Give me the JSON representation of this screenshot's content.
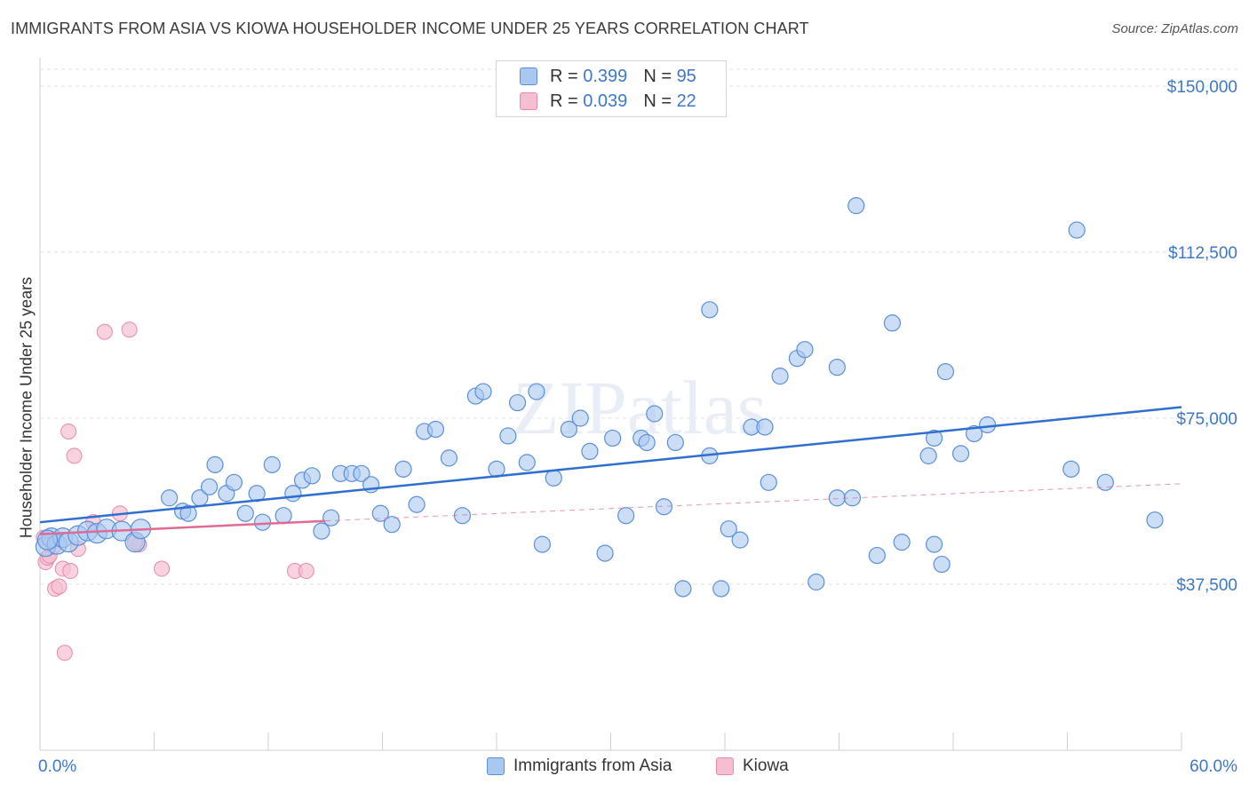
{
  "title": "IMMIGRANTS FROM ASIA VS KIOWA HOUSEHOLDER INCOME UNDER 25 YEARS CORRELATION CHART",
  "source": "Source: ZipAtlas.com",
  "watermark": "ZIPatlas",
  "legend": {
    "rows": [
      {
        "r_label": "R =",
        "r_value": "0.399",
        "n_label": "N =",
        "n_value": "95"
      },
      {
        "r_label": "R =",
        "r_value": "0.039",
        "n_label": "N =",
        "n_value": "22"
      }
    ]
  },
  "bottom_legend": {
    "series1": "Immigrants from Asia",
    "series2": "Kiowa"
  },
  "colors": {
    "blue_fill": "#a9c8f0",
    "blue_stroke": "#5b8fd8",
    "blue_line": "#2f6fd0",
    "pink_fill": "#f6bfd1",
    "pink_stroke": "#e58aaa",
    "pink_line": "#e06a94",
    "tick_text": "#3d78c8",
    "grid": "#e2e2e2"
  },
  "chart_data": {
    "type": "scatter",
    "title": "IMMIGRANTS FROM ASIA VS KIOWA HOUSEHOLDER INCOME UNDER 25 YEARS CORRELATION CHART",
    "xlabel": "",
    "ylabel": "Householder Income Under 25 years",
    "xlim": [
      0,
      60
    ],
    "ylim": [
      0,
      155000
    ],
    "x_tick_labels": [
      "0.0%",
      "60.0%"
    ],
    "y_ticks": [
      37500,
      75000,
      112500,
      150000
    ],
    "y_tick_labels": [
      "$37,500",
      "$75,000",
      "$112,500",
      "$150,000"
    ],
    "grid": true,
    "series": [
      {
        "name": "Immigrants from Asia",
        "color": "#a9c8f0",
        "trend": {
          "x": [
            0,
            60
          ],
          "y": [
            51500,
            77500
          ]
        },
        "points": [
          {
            "x": 0.3,
            "y": 46000
          },
          {
            "x": 0.6,
            "y": 48000
          },
          {
            "x": 0.9,
            "y": 46500
          },
          {
            "x": 1.2,
            "y": 48000
          },
          {
            "x": 1.5,
            "y": 47000
          },
          {
            "x": 2.0,
            "y": 48500
          },
          {
            "x": 2.5,
            "y": 49500
          },
          {
            "x": 3.0,
            "y": 49000
          },
          {
            "x": 3.5,
            "y": 50000
          },
          {
            "x": 4.3,
            "y": 49500
          },
          {
            "x": 5.0,
            "y": 47000
          },
          {
            "x": 5.3,
            "y": 50000
          },
          {
            "x": 6.8,
            "y": 57000
          },
          {
            "x": 7.5,
            "y": 54000
          },
          {
            "x": 7.8,
            "y": 53500
          },
          {
            "x": 8.4,
            "y": 57000
          },
          {
            "x": 8.9,
            "y": 59500
          },
          {
            "x": 9.2,
            "y": 64500
          },
          {
            "x": 9.8,
            "y": 58000
          },
          {
            "x": 10.2,
            "y": 60500
          },
          {
            "x": 10.8,
            "y": 53500
          },
          {
            "x": 11.4,
            "y": 58000
          },
          {
            "x": 11.7,
            "y": 51500
          },
          {
            "x": 12.2,
            "y": 64500
          },
          {
            "x": 12.8,
            "y": 53000
          },
          {
            "x": 13.3,
            "y": 58000
          },
          {
            "x": 13.8,
            "y": 61000
          },
          {
            "x": 14.3,
            "y": 62000
          },
          {
            "x": 14.8,
            "y": 49500
          },
          {
            "x": 15.3,
            "y": 52500
          },
          {
            "x": 15.8,
            "y": 62500
          },
          {
            "x": 16.4,
            "y": 62500
          },
          {
            "x": 16.9,
            "y": 62500
          },
          {
            "x": 17.4,
            "y": 60000
          },
          {
            "x": 17.9,
            "y": 53500
          },
          {
            "x": 18.5,
            "y": 51000
          },
          {
            "x": 19.1,
            "y": 63500
          },
          {
            "x": 19.8,
            "y": 55500
          },
          {
            "x": 20.2,
            "y": 72000
          },
          {
            "x": 20.8,
            "y": 72500
          },
          {
            "x": 21.5,
            "y": 66000
          },
          {
            "x": 22.2,
            "y": 53000
          },
          {
            "x": 22.9,
            "y": 80000
          },
          {
            "x": 23.3,
            "y": 81000
          },
          {
            "x": 24.0,
            "y": 63500
          },
          {
            "x": 24.6,
            "y": 71000
          },
          {
            "x": 25.1,
            "y": 78500
          },
          {
            "x": 25.6,
            "y": 65000
          },
          {
            "x": 26.1,
            "y": 81000
          },
          {
            "x": 26.4,
            "y": 46500
          },
          {
            "x": 27.0,
            "y": 61500
          },
          {
            "x": 27.8,
            "y": 72500
          },
          {
            "x": 28.4,
            "y": 75000
          },
          {
            "x": 28.9,
            "y": 67500
          },
          {
            "x": 29.7,
            "y": 44500
          },
          {
            "x": 30.1,
            "y": 70500
          },
          {
            "x": 30.8,
            "y": 53000
          },
          {
            "x": 31.6,
            "y": 70500
          },
          {
            "x": 31.9,
            "y": 69500
          },
          {
            "x": 32.3,
            "y": 76000
          },
          {
            "x": 32.8,
            "y": 55000
          },
          {
            "x": 33.4,
            "y": 69500
          },
          {
            "x": 33.8,
            "y": 36500
          },
          {
            "x": 35.2,
            "y": 66500
          },
          {
            "x": 35.2,
            "y": 99500
          },
          {
            "x": 35.8,
            "y": 36500
          },
          {
            "x": 36.2,
            "y": 50000
          },
          {
            "x": 36.8,
            "y": 47500
          },
          {
            "x": 37.4,
            "y": 73000
          },
          {
            "x": 38.1,
            "y": 73000
          },
          {
            "x": 38.3,
            "y": 60500
          },
          {
            "x": 38.9,
            "y": 84500
          },
          {
            "x": 39.8,
            "y": 88500
          },
          {
            "x": 40.2,
            "y": 90500
          },
          {
            "x": 40.8,
            "y": 38000
          },
          {
            "x": 41.9,
            "y": 86500
          },
          {
            "x": 41.9,
            "y": 57000
          },
          {
            "x": 42.7,
            "y": 57000
          },
          {
            "x": 42.9,
            "y": 123000
          },
          {
            "x": 44.0,
            "y": 44000
          },
          {
            "x": 44.8,
            "y": 96500
          },
          {
            "x": 45.3,
            "y": 47000
          },
          {
            "x": 46.7,
            "y": 66500
          },
          {
            "x": 47.0,
            "y": 70500
          },
          {
            "x": 47.0,
            "y": 46500
          },
          {
            "x": 47.4,
            "y": 42000
          },
          {
            "x": 47.6,
            "y": 85500
          },
          {
            "x": 48.4,
            "y": 67000
          },
          {
            "x": 49.1,
            "y": 71500
          },
          {
            "x": 49.8,
            "y": 73500
          },
          {
            "x": 54.2,
            "y": 63500
          },
          {
            "x": 54.5,
            "y": 117500
          },
          {
            "x": 56.0,
            "y": 60500
          },
          {
            "x": 58.6,
            "y": 52000
          },
          {
            "x": 0.4,
            "y": 47500
          }
        ]
      },
      {
        "name": "Kiowa",
        "color": "#f6bfd1",
        "trend": {
          "x": [
            0,
            15
          ],
          "y": [
            48800,
            51800
          ]
        },
        "trend_dashed": {
          "x": [
            15,
            60
          ],
          "y": [
            51800,
            60200
          ]
        },
        "points": [
          {
            "x": 0.2,
            "y": 48000
          },
          {
            "x": 0.3,
            "y": 42500
          },
          {
            "x": 0.4,
            "y": 43500
          },
          {
            "x": 0.5,
            "y": 44000
          },
          {
            "x": 0.7,
            "y": 46000
          },
          {
            "x": 0.8,
            "y": 36500
          },
          {
            "x": 1.0,
            "y": 37000
          },
          {
            "x": 1.2,
            "y": 41000
          },
          {
            "x": 1.3,
            "y": 22000
          },
          {
            "x": 1.5,
            "y": 72000
          },
          {
            "x": 1.6,
            "y": 40500
          },
          {
            "x": 1.8,
            "y": 66500
          },
          {
            "x": 2.0,
            "y": 45500
          },
          {
            "x": 2.8,
            "y": 51500
          },
          {
            "x": 3.4,
            "y": 94500
          },
          {
            "x": 4.2,
            "y": 53500
          },
          {
            "x": 4.7,
            "y": 95000
          },
          {
            "x": 5.2,
            "y": 46500
          },
          {
            "x": 6.4,
            "y": 41000
          },
          {
            "x": 13.4,
            "y": 40500
          },
          {
            "x": 14.0,
            "y": 40500
          },
          {
            "x": 5.0,
            "y": 47000
          }
        ]
      }
    ]
  }
}
